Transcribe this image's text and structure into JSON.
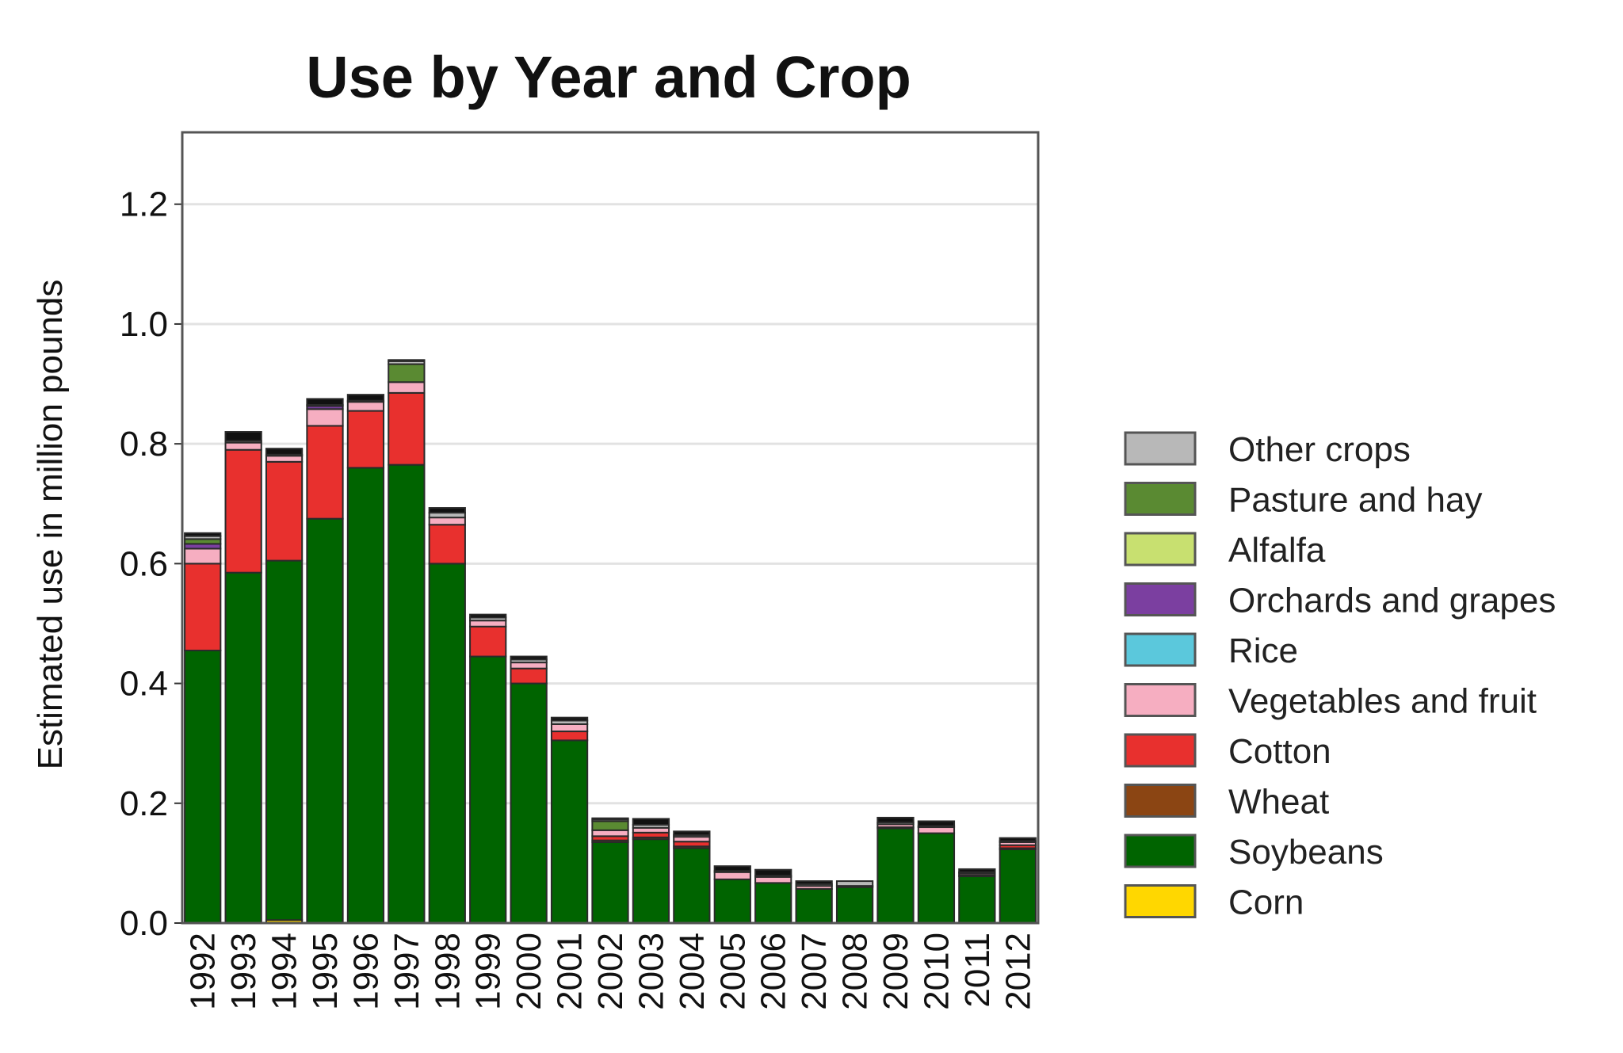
{
  "chart_data": {
    "type": "bar",
    "stacked": true,
    "title": "Use by Year and Crop",
    "xlabel": "",
    "ylabel": "Estimated use in million pounds",
    "ylim": [
      0,
      1.32
    ],
    "yticks": [
      "0.0",
      "0.2",
      "0.4",
      "0.6",
      "0.8",
      "1.0",
      "1.2"
    ],
    "grid": true,
    "legend_position": "right",
    "categories": [
      "1992",
      "1993",
      "1994",
      "1995",
      "1996",
      "1997",
      "1998",
      "1999",
      "2000",
      "2001",
      "2002",
      "2003",
      "2004",
      "2005",
      "2006",
      "2007",
      "2008",
      "2009",
      "2010",
      "2011",
      "2012"
    ],
    "series": [
      {
        "name": "Corn",
        "color": "#FFD700",
        "values": [
          0,
          0,
          0.005,
          0,
          0,
          0,
          0,
          0,
          0,
          0,
          0,
          0,
          0,
          0,
          0,
          0,
          0,
          0,
          0,
          0,
          0
        ]
      },
      {
        "name": "Soybeans",
        "color": "#006400",
        "values": [
          0.455,
          0.585,
          0.6,
          0.675,
          0.76,
          0.765,
          0.6,
          0.445,
          0.4,
          0.305,
          0.135,
          0.14,
          0.125,
          0.073,
          0.067,
          0.057,
          0.06,
          0.158,
          0.15,
          0.078,
          0.123
        ]
      },
      {
        "name": "Wheat",
        "color": "#8B4513",
        "values": [
          0,
          0,
          0,
          0,
          0,
          0,
          0,
          0,
          0,
          0,
          0.003,
          0.003,
          0.003,
          0,
          0,
          0,
          0,
          0.002,
          0,
          0.002,
          0.002
        ]
      },
      {
        "name": "Cotton",
        "color": "#E8302E",
        "values": [
          0.145,
          0.205,
          0.165,
          0.155,
          0.095,
          0.12,
          0.065,
          0.05,
          0.025,
          0.015,
          0.007,
          0.008,
          0.008,
          0,
          0,
          0,
          0,
          0,
          0,
          0,
          0.005
        ]
      },
      {
        "name": "Vegetables and fruit",
        "color": "#F6AEC1",
        "values": [
          0.025,
          0.012,
          0.01,
          0.028,
          0.015,
          0.018,
          0.012,
          0.01,
          0.01,
          0.012,
          0.01,
          0.008,
          0.008,
          0.012,
          0.01,
          0.005,
          0.002,
          0.005,
          0.01,
          0.003,
          0.005
        ]
      },
      {
        "name": "Rice",
        "color": "#5BC8DC",
        "values": [
          0,
          0,
          0,
          0,
          0,
          0,
          0,
          0,
          0,
          0,
          0,
          0,
          0,
          0,
          0,
          0,
          0,
          0,
          0,
          0,
          0
        ]
      },
      {
        "name": "Orchards and grapes",
        "color": "#7B3FA0",
        "values": [
          0.008,
          0,
          0,
          0.005,
          0,
          0,
          0,
          0,
          0,
          0,
          0,
          0,
          0,
          0,
          0,
          0,
          0,
          0,
          0,
          0,
          0
        ]
      },
      {
        "name": "Alfalfa",
        "color": "#C8E070",
        "values": [
          0,
          0,
          0,
          0,
          0,
          0,
          0,
          0,
          0,
          0,
          0,
          0,
          0,
          0,
          0,
          0,
          0,
          0,
          0,
          0,
          0
        ]
      },
      {
        "name": "Pasture and hay",
        "color": "#5A8A32",
        "values": [
          0.008,
          0,
          0,
          0,
          0,
          0.03,
          0,
          0,
          0,
          0,
          0.015,
          0,
          0,
          0,
          0,
          0,
          0,
          0,
          0,
          0,
          0
        ]
      },
      {
        "name": "Other crops",
        "color": "#B8B8B8",
        "values": [
          0.005,
          0.003,
          0.002,
          0.002,
          0.002,
          0.005,
          0.008,
          0.005,
          0.005,
          0.006,
          0.003,
          0.005,
          0.003,
          0.002,
          0.002,
          0.003,
          0.008,
          0.003,
          0.002,
          0.002,
          0.002
        ]
      },
      {
        "name": "",
        "color": "#111111",
        "values": [
          0.005,
          0.015,
          0.01,
          0.01,
          0.01,
          0.002,
          0.008,
          0.005,
          0.005,
          0.005,
          0.002,
          0.01,
          0.006,
          0.008,
          0.01,
          0.005,
          0,
          0.008,
          0.008,
          0.005,
          0.005
        ]
      }
    ]
  }
}
